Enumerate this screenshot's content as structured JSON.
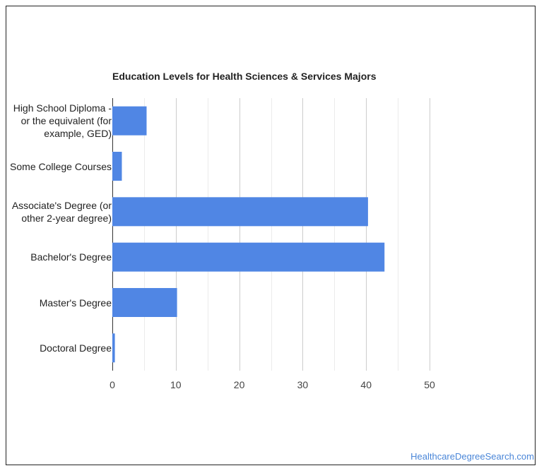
{
  "chart_data": {
    "type": "bar",
    "orientation": "horizontal",
    "title": "Education Levels for Health Sciences & Services Majors",
    "categories": [
      "High School Diploma - or the equivalent (for example, GED)",
      "Some College Courses",
      "Associate's Degree (or other 2-year degree)",
      "Bachelor's Degree",
      "Master's Degree",
      "Doctoral Degree"
    ],
    "category_lines": [
      [
        "High School Diploma -",
        "or the equivalent (for",
        "example, GED)"
      ],
      [
        "Some College Courses"
      ],
      [
        "Associate's Degree (or",
        "other 2-year degree)"
      ],
      [
        "Bachelor's Degree"
      ],
      [
        "Master's Degree"
      ],
      [
        "Doctoral Degree"
      ]
    ],
    "values": [
      5.4,
      1.5,
      40.3,
      42.9,
      10.2,
      0.4
    ],
    "xlim": [
      0,
      50
    ],
    "xticks": [
      0,
      10,
      20,
      30,
      40,
      50
    ],
    "grid": true,
    "bar_color": "#5086e4",
    "gridline_color": "#cccccc"
  },
  "watermark": "HealthcareDegreeSearch.com"
}
